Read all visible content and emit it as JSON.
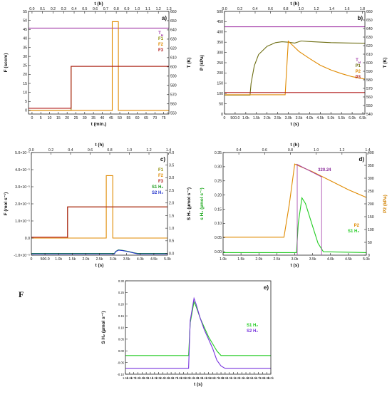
{
  "figure_letter": "F",
  "chart_data": [
    {
      "id": "a",
      "type": "line",
      "panel_label": "a)",
      "title": "",
      "xlabel": "t (min.)",
      "x_top_label": "t (h)",
      "ylabel": "F (sccm)",
      "y2label": "T (K)",
      "xlim": [
        -2,
        78
      ],
      "xticks": [
        0,
        5,
        10,
        15,
        20,
        25,
        30,
        35,
        40,
        45,
        50,
        55,
        60,
        65,
        70,
        75
      ],
      "x_top_lim": [
        -0.0333,
        1.3
      ],
      "x_top_ticks": [
        0.0,
        0.1,
        0.2,
        0.3,
        0.4,
        0.5,
        0.6,
        0.7,
        0.8,
        0.9,
        1.0,
        1.1,
        1.2,
        1.3
      ],
      "ylim": [
        -2,
        55
      ],
      "yticks": [
        0,
        5,
        10,
        15,
        20,
        25,
        30,
        35,
        40,
        45,
        50,
        55
      ],
      "y2lim": [
        549,
        660
      ],
      "y2ticks": [
        550,
        560,
        570,
        580,
        590,
        600,
        610,
        620,
        630,
        640,
        650,
        660
      ],
      "legend": [
        "T_H",
        "F1",
        "F2",
        "F3"
      ],
      "legend_position": "right",
      "series": [
        {
          "name": "T_H",
          "axis": "right",
          "color": "#a23aa8",
          "x": [
            -2,
            78
          ],
          "y": [
            642,
            642
          ]
        },
        {
          "name": "F1",
          "axis": "left",
          "color": "#8a8a00",
          "x": [
            -2,
            22.3,
            22.3,
            78
          ],
          "y": [
            0,
            0,
            24.5,
            24.5
          ]
        },
        {
          "name": "F2",
          "axis": "left",
          "color": "#e08a00",
          "x": [
            -2,
            45.7,
            45.7,
            49.2,
            49.2,
            78
          ],
          "y": [
            0,
            0,
            49.3,
            49.3,
            0,
            0
          ]
        },
        {
          "name": "F3",
          "axis": "left",
          "color": "#b01818",
          "x": [
            -2,
            22.3,
            22.3,
            78
          ],
          "y": [
            1.2,
            1.2,
            24.5,
            24.5
          ]
        }
      ]
    },
    {
      "id": "b",
      "type": "line",
      "panel_label": "b)",
      "title": "",
      "xlabel": "t (s)",
      "x_top_label": "t (h)",
      "ylabel": "P (kPa)",
      "y2label": "T (K)",
      "xlim": [
        0,
        6600
      ],
      "xticks": [
        0,
        500,
        1000,
        1500,
        2000,
        2500,
        3000,
        3500,
        4000,
        4500,
        5000,
        5500,
        6000,
        6500
      ],
      "xticklabels": [
        "0",
        "500.0",
        "1.0k",
        "1.5k",
        "2.0k",
        "2.5k",
        "3.0k",
        "3.5k",
        "4.0k",
        "4.5k",
        "5.0k",
        "5.5k",
        "6.0k",
        "6.5k"
      ],
      "x_top_lim": [
        0,
        1.8333
      ],
      "x_top_ticks": [
        0.0,
        0.2,
        0.4,
        0.6,
        0.8,
        1.0,
        1.2,
        1.4,
        1.6,
        1.8
      ],
      "ylim": [
        0,
        500
      ],
      "yticks": [
        0,
        50,
        100,
        150,
        200,
        250,
        300,
        350,
        400,
        450,
        500
      ],
      "y2lim": [
        540,
        660
      ],
      "y2ticks": [
        540,
        550,
        560,
        570,
        580,
        590,
        600,
        610,
        620,
        630,
        640,
        650,
        660
      ],
      "legend": [
        "T_H",
        "P1",
        "P2",
        "P3"
      ],
      "legend_position": "right",
      "series": [
        {
          "name": "T_H",
          "axis": "right",
          "color": "#a23aa8",
          "x": [
            0,
            6600
          ],
          "y": [
            642,
            642
          ]
        },
        {
          "name": "P1",
          "axis": "left",
          "color": "#6e6e14",
          "x": [
            0,
            1200,
            1250,
            1400,
            1600,
            2000,
            2400,
            2700,
            3000,
            3300,
            3600,
            4000,
            5000,
            6000,
            6600
          ],
          "y": [
            92,
            92,
            150,
            235,
            290,
            330,
            348,
            352,
            350,
            346,
            356,
            353,
            348,
            346,
            345
          ]
        },
        {
          "name": "P2",
          "axis": "left",
          "color": "#e08a00",
          "x": [
            0,
            2850,
            3000,
            3200,
            3500,
            4000,
            4500,
            5000,
            5500,
            6000,
            6600
          ],
          "y": [
            94,
            94,
            355,
            335,
            305,
            270,
            238,
            215,
            197,
            182,
            170
          ]
        },
        {
          "name": "P3",
          "axis": "left",
          "color": "#b01818",
          "x": [
            0,
            6600
          ],
          "y": [
            105,
            105
          ]
        }
      ]
    },
    {
      "id": "c",
      "type": "line",
      "panel_label": "c)",
      "title": "",
      "xlabel": "t (s)",
      "x_top_label": "t (h)",
      "ylabel": "F (mol s⁻¹)",
      "y2label": "S H₂ (µmol s⁻¹)",
      "xlim": [
        0,
        5000
      ],
      "xticks": [
        0,
        500,
        1000,
        1500,
        2000,
        2500,
        3000,
        3500,
        4000,
        4500,
        5000
      ],
      "xticklabels": [
        "0",
        "500.0",
        "1.0k",
        "1.5k",
        "2.0k",
        "2.5k",
        "3.0k",
        "3.5k",
        "4.0k",
        "4.5k",
        "5.0k"
      ],
      "x_top_lim": [
        0,
        1.3889
      ],
      "x_top_ticks": [
        0.0,
        0.2,
        0.4,
        0.6,
        0.8,
        1.0,
        1.2,
        1.4
      ],
      "ylim": [
        -1e-05,
        5e-05
      ],
      "yticks": [
        -1e-05,
        0,
        1e-05,
        2e-05,
        3e-05,
        4e-05,
        5e-05
      ],
      "yticklabels": [
        "-1.0×10⁻⁵",
        "0.0",
        "1.0×10⁻⁵",
        "2.0×10⁻⁵",
        "3.0×10⁻⁵",
        "4.0×10⁻⁵",
        "5.0×10⁻⁵"
      ],
      "y2lim": [
        -0.07,
        4.0
      ],
      "y2ticks": [
        0.0,
        0.5,
        1.0,
        1.5,
        2.0,
        2.5,
        3.0,
        3.5,
        4.0
      ],
      "legend": [
        "F1",
        "F2",
        "F3",
        "S1 H₂",
        "S2 H₂"
      ],
      "legend_position": "right",
      "series": [
        {
          "name": "F1",
          "axis": "left",
          "color": "#8a8a00",
          "x": [
            0,
            1330,
            1330,
            5000
          ],
          "y": [
            0,
            0,
            1.82e-05,
            1.82e-05
          ]
        },
        {
          "name": "F2",
          "axis": "left",
          "color": "#e08a00",
          "x": [
            0,
            2750,
            2750,
            2990,
            2990,
            5000
          ],
          "y": [
            0,
            0,
            3.65e-05,
            3.65e-05,
            0,
            0
          ]
        },
        {
          "name": "F3",
          "axis": "left",
          "color": "#b01818",
          "x": [
            0,
            1330,
            1330,
            5000
          ],
          "y": [
            5e-07,
            5e-07,
            1.82e-05,
            1.82e-05
          ]
        },
        {
          "name": "S1 H₂",
          "axis": "right",
          "color": "#1a9a1a",
          "x": [
            0,
            3050,
            3100,
            3200,
            3350,
            3550,
            3750,
            3900,
            5000
          ],
          "y": [
            0,
            0,
            0.08,
            0.14,
            0.12,
            0.08,
            0.03,
            0,
            0
          ]
        },
        {
          "name": "S2 H₂",
          "axis": "right",
          "color": "#2233cc",
          "x": [
            0,
            3050,
            3100,
            3200,
            3350,
            3550,
            3750,
            3900,
            5000
          ],
          "y": [
            -0.02,
            -0.02,
            0.07,
            0.13,
            0.11,
            0.07,
            0.02,
            -0.02,
            -0.02
          ]
        }
      ]
    },
    {
      "id": "d",
      "type": "line",
      "panel_label": "d)",
      "title": "",
      "xlabel": "t (s)",
      "x_top_label": "t (h)",
      "ylabel": "s H₂ (µmol s⁻¹)",
      "y2label": "P2 (kPa)",
      "xlim": [
        1000,
        5000
      ],
      "xticks": [
        1000,
        1500,
        2000,
        2500,
        3000,
        3500,
        4000,
        4500,
        5000
      ],
      "xticklabels": [
        "1.0k",
        "1.5k",
        "2.0k",
        "2.5k",
        "3.0k",
        "3.5k",
        "4.0k",
        "4.5k",
        "5.0k"
      ],
      "x_top_lim": [
        0.2778,
        1.3889
      ],
      "x_top_ticks": [
        0.4,
        0.6,
        0.8,
        1.0,
        1.2,
        1.4
      ],
      "ylim": [
        -0.012,
        0.35
      ],
      "yticks": [
        0.0,
        0.05,
        0.1,
        0.15,
        0.2,
        0.25,
        0.3,
        0.35
      ],
      "y2lim": [
        0,
        400
      ],
      "y2ticks": [
        0,
        50,
        100,
        150,
        200,
        250,
        300,
        350,
        400
      ],
      "annotation": "320.24",
      "legend": [
        "P2",
        "S1 H₂"
      ],
      "legend_position": "right",
      "series": [
        {
          "name": "P2",
          "axis": "right",
          "color": "#e08a00",
          "x": [
            1000,
            2700,
            2850,
            3000,
            3500,
            4000,
            4500,
            5000
          ],
          "y": [
            70,
            70,
            200,
            355,
            325,
            290,
            255,
            225
          ]
        },
        {
          "name": "S1 H₂",
          "axis": "left",
          "color": "#22cc22",
          "x": [
            1000,
            3050,
            3100,
            3200,
            3300,
            3500,
            3650,
            3800,
            5000
          ],
          "y": [
            -0.003,
            -0.003,
            0.1,
            0.19,
            0.17,
            0.09,
            0.03,
            0,
            -0.003
          ]
        }
      ]
    },
    {
      "id": "e",
      "type": "line",
      "panel_label": "e)",
      "title": "",
      "xlabel": "t (s)",
      "x_top_label": "",
      "ylabel": "S H₂ (µmol s⁻¹)",
      "y2label": "",
      "xlim": [
        1500,
        5000
      ],
      "xticks": [
        1500,
        1600,
        1700,
        1800,
        1900,
        2000,
        2100,
        2200,
        2300,
        2400,
        2500,
        2600,
        2700,
        2800,
        2900,
        3000,
        3100,
        3200,
        3300,
        3400,
        3500,
        3600,
        3700,
        3800,
        3900,
        4000,
        4100,
        4200,
        4300,
        4400,
        4500,
        4600,
        4700,
        4800,
        4900,
        5000
      ],
      "xticklabels": [
        "1.5k",
        "1.6k",
        "1.7k",
        "1.8k",
        "1.9k",
        "2.0k",
        "2.1k",
        "2.2k",
        "2.3k",
        "2.4k",
        "2.5k",
        "2.6k",
        "2.7k",
        "2.8k",
        "2.9k",
        "3.0k",
        "3.1k",
        "3.2k",
        "3.3k",
        "3.4k",
        "3.5k",
        "3.6k",
        "3.7k",
        "3.8k",
        "3.9k",
        "4.0k",
        "4.1k",
        "4.2k",
        "4.3k",
        "4.4k",
        "4.5k",
        "4.6k",
        "4.7k",
        "4.8k",
        "4.9k",
        "5.0k"
      ],
      "ylim": [
        -0.1,
        0.3
      ],
      "yticks": [
        -0.1,
        -0.05,
        0.0,
        0.05,
        0.1,
        0.15,
        0.2,
        0.25,
        0.3
      ],
      "legend": [
        "S1 H₂",
        "S2 H₂"
      ],
      "legend_position": "right",
      "series": [
        {
          "name": "S1 H₂",
          "axis": "left",
          "color": "#22cc22",
          "x": [
            1500,
            3020,
            3060,
            3150,
            3200,
            3300,
            3400,
            3500,
            3600,
            3700,
            3800,
            5000
          ],
          "y": [
            -0.02,
            -0.02,
            0.12,
            0.21,
            0.19,
            0.14,
            0.1,
            0.06,
            0.03,
            0.0,
            -0.02,
            -0.02
          ]
        },
        {
          "name": "S2 H₂",
          "axis": "left",
          "color": "#7733dd",
          "x": [
            1500,
            3020,
            3060,
            3150,
            3200,
            3300,
            3400,
            3500,
            3600,
            3700,
            3800,
            3900,
            5000
          ],
          "y": [
            -0.075,
            -0.075,
            0.13,
            0.225,
            0.2,
            0.14,
            0.09,
            0.05,
            0.01,
            -0.04,
            -0.065,
            -0.075,
            -0.075
          ]
        }
      ]
    }
  ]
}
